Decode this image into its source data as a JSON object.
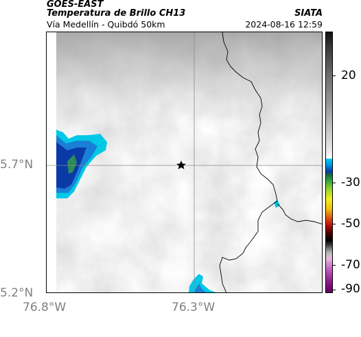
{
  "header": {
    "satellite": "GOES-EAST",
    "product": "Temperatura de Brillo CH13",
    "region": "Vía Medellín - Quibdó 50km",
    "agency": "SIATA",
    "timestamp": "2024-08-16 12:59"
  },
  "map": {
    "lat_ticks": [
      "5.7°N",
      "5.2°N"
    ],
    "lon_ticks": [
      "76.8°W",
      "76.3°W"
    ],
    "marker": "star-icon",
    "colors": {
      "cloud_gray": "#bdbdbd",
      "cold_cyan": "#00c8e6",
      "cold_blue": "#0a3aa8",
      "cold_green": "#2e8b57",
      "border_line": "#000000"
    }
  },
  "colorbar": {
    "labels": [
      "20",
      "-30",
      "-50",
      "-70",
      "-90"
    ]
  }
}
